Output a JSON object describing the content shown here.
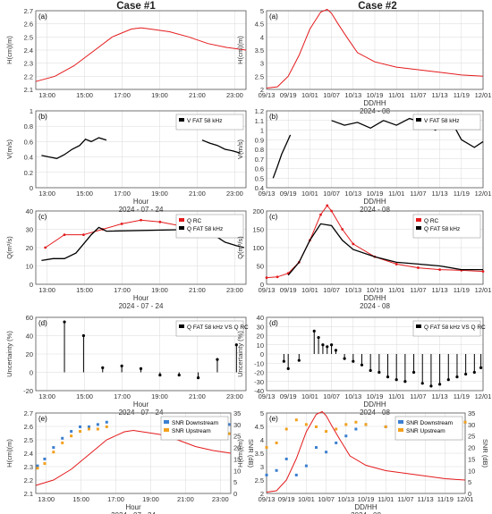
{
  "case_titles": [
    "Case #1",
    "Case #2"
  ],
  "colors": {
    "red": "#e41a1c",
    "black": "#000000",
    "blue": "#3b7fd0",
    "orange": "#f2a11d",
    "grid": "#d9d9d9",
    "axis": "#555555"
  },
  "chart_data": [
    {
      "type": "line",
      "panel": "(a)",
      "case": "Case #1",
      "ylabel": "H(cm)(m)",
      "xlabel": "",
      "x_ticks": [
        "13:00",
        "15:00",
        "17:00",
        "19:00",
        "21:00",
        "23:00"
      ],
      "xlim": [
        12.5,
        23.5
      ],
      "ylim": [
        2.1,
        2.7
      ],
      "y_ticks": [
        2.1,
        2.2,
        2.3,
        2.4,
        2.5,
        2.6,
        2.7
      ],
      "series": [
        {
          "color": "red",
          "x": [
            12.5,
            13.5,
            14.5,
            15.5,
            16.5,
            17.5,
            18.0,
            18.5,
            19.5,
            20.5,
            21.5,
            22.5,
            23.5
          ],
          "y": [
            2.16,
            2.2,
            2.28,
            2.39,
            2.5,
            2.56,
            2.57,
            2.56,
            2.54,
            2.5,
            2.45,
            2.42,
            2.4
          ]
        }
      ]
    },
    {
      "type": "line",
      "panel": "(a)",
      "case": "Case #2",
      "ylabel": "H(cm)(m)",
      "xlabel": "DD/HH",
      "xlabel2": "2024 - 08",
      "x_ticks": [
        "09/13",
        "09/19",
        "10/01",
        "10/07",
        "10/13",
        "10/19",
        "11/01",
        "11/07",
        "11/13",
        "11/19",
        "12/01"
      ],
      "xlim": [
        0,
        10
      ],
      "ylim": [
        2,
        5
      ],
      "y_ticks": [
        2,
        2.5,
        3,
        3.5,
        4,
        4.5,
        5
      ],
      "series": [
        {
          "color": "red",
          "x": [
            0,
            0.5,
            1.0,
            1.5,
            2.0,
            2.5,
            2.8,
            3.0,
            3.3,
            3.7,
            4.2,
            5.0,
            6.0,
            7.0,
            8.0,
            9.0,
            10.0
          ],
          "y": [
            2.05,
            2.1,
            2.5,
            3.3,
            4.3,
            4.95,
            5.05,
            4.9,
            4.5,
            4.0,
            3.4,
            3.05,
            2.85,
            2.75,
            2.65,
            2.55,
            2.5
          ]
        }
      ]
    },
    {
      "type": "line",
      "panel": "(b)",
      "case": "Case #1",
      "ylabel": "V(m/s)",
      "xlabel": "Hour",
      "xlabel2": "2024 - 07 - 24",
      "x_ticks": [
        "13:00",
        "15:00",
        "17:00",
        "19:00",
        "21:00",
        "23:00"
      ],
      "xlim": [
        12.5,
        23.5
      ],
      "ylim": [
        0.0,
        1.0
      ],
      "y_ticks": [
        0.0,
        0.2,
        0.4,
        0.6,
        0.8,
        1.0
      ],
      "legend": "V FAT 58 kHz",
      "series": [
        {
          "color": "black",
          "x": [
            12.8,
            13.2,
            13.6,
            14.0,
            14.4,
            14.8,
            15.1,
            15.4,
            15.8,
            16.2
          ],
          "y": [
            0.42,
            0.4,
            0.38,
            0.43,
            0.5,
            0.55,
            0.63,
            0.6,
            0.65,
            0.62
          ]
        },
        {
          "color": "black",
          "x": [
            21.2,
            21.6,
            22.0,
            22.4,
            22.8,
            23.2
          ],
          "y": [
            0.62,
            0.58,
            0.55,
            0.5,
            0.48,
            0.45
          ]
        }
      ]
    },
    {
      "type": "line",
      "panel": "(b)",
      "case": "Case #2",
      "ylabel": "V(m/s)",
      "xlabel": "DD/HH",
      "xlabel2": "2024 - 08",
      "x_ticks": [
        "09/13",
        "09/19",
        "10/01",
        "10/07",
        "10/13",
        "10/19",
        "11/01",
        "11/07",
        "11/13",
        "11/19",
        "12/01"
      ],
      "xlim": [
        0,
        10
      ],
      "ylim": [
        0.4,
        1.2
      ],
      "y_ticks": [
        0.4,
        0.5,
        0.6,
        0.7,
        0.8,
        0.9,
        1.0,
        1.1,
        1.2
      ],
      "legend": "V FAT 58 kHz",
      "series": [
        {
          "color": "black",
          "x": [
            0.3,
            0.5,
            0.7,
            0.9,
            1.1
          ],
          "y": [
            0.5,
            0.62,
            0.75,
            0.85,
            0.95
          ]
        },
        {
          "color": "black",
          "x": [
            3.0,
            3.6,
            4.2,
            4.8,
            5.4,
            6.0,
            6.6,
            7.2,
            7.8,
            8.4,
            9.0,
            9.6,
            10.0
          ],
          "y": [
            1.1,
            1.05,
            1.08,
            1.02,
            1.1,
            1.05,
            1.12,
            1.08,
            1.0,
            1.15,
            0.9,
            0.82,
            0.88
          ]
        }
      ]
    },
    {
      "type": "scatter",
      "panel": "(c)",
      "case": "Case #1",
      "ylabel": "Q(m³/s)",
      "xlabel": "Hour",
      "xlabel2": "2024 - 07 - 24",
      "x_ticks": [
        "13:00",
        "15:00",
        "17:00",
        "19:00",
        "21:00",
        "23:00"
      ],
      "xlim": [
        12.5,
        23.5
      ],
      "ylim": [
        0,
        40
      ],
      "y_ticks": [
        0,
        10,
        20,
        30,
        40
      ],
      "legend": [
        "Q RC",
        "Q FAT 58 kHz"
      ],
      "series": [
        {
          "name": "Q RC",
          "color": "red",
          "x": [
            13,
            14,
            15,
            16,
            17,
            18,
            19,
            20,
            21,
            22,
            23
          ],
          "y": [
            20,
            27,
            27,
            30,
            33,
            35,
            34,
            32,
            30,
            28,
            27
          ]
        },
        {
          "name": "Q FAT 58 kHz",
          "color": "black",
          "x": [
            12.8,
            13.4,
            14.0,
            14.6,
            15.0,
            15.4,
            15.8,
            16.2,
            21.2,
            21.8,
            22.4,
            23.0,
            23.4
          ],
          "y": [
            13,
            14,
            14,
            17,
            22,
            27,
            31,
            29,
            30,
            27,
            23,
            21,
            20
          ]
        }
      ]
    },
    {
      "type": "scatter",
      "panel": "(c)",
      "case": "Case #2",
      "ylabel": "Q(m³/s)",
      "xlabel": "DD/HH",
      "xlabel2": "2024 - 08",
      "x_ticks": [
        "09/13",
        "09/19",
        "10/01",
        "10/07",
        "10/13",
        "10/19",
        "11/01",
        "11/07",
        "11/13",
        "11/19",
        "12/01"
      ],
      "xlim": [
        0,
        10
      ],
      "ylim": [
        0,
        200
      ],
      "y_ticks": [
        0,
        50,
        100,
        150,
        200
      ],
      "legend": [
        "Q RC",
        "Q FAT 58 kHz"
      ],
      "series": [
        {
          "name": "Q RC",
          "color": "red",
          "x": [
            0,
            0.5,
            1.0,
            1.5,
            2.0,
            2.5,
            2.8,
            3.0,
            3.5,
            4.0,
            5.0,
            6.0,
            7.0,
            8.0,
            9.0,
            10.0
          ],
          "y": [
            18,
            20,
            30,
            60,
            120,
            190,
            215,
            200,
            150,
            110,
            75,
            55,
            45,
            40,
            38,
            35
          ]
        },
        {
          "name": "Q FAT 58 kHz",
          "color": "black",
          "x": [
            1.0,
            1.5,
            2.0,
            2.5,
            3.0,
            3.5,
            4.0,
            5.0,
            6.0,
            7.0,
            8.0,
            9.0,
            10.0
          ],
          "y": [
            25,
            60,
            120,
            165,
            160,
            120,
            95,
            75,
            60,
            55,
            50,
            40,
            40
          ]
        }
      ]
    },
    {
      "type": "bar",
      "panel": "(d)",
      "case": "Case #1",
      "ylabel": "Uncertainty (%)",
      "xlabel": "Hour",
      "xlabel2": "2024 - 07 - 24",
      "x_ticks": [
        "13:00",
        "15:00",
        "17:00",
        "19:00",
        "21:00",
        "23:00"
      ],
      "xlim": [
        12.5,
        23.5
      ],
      "ylim": [
        -20,
        60
      ],
      "y_ticks": [
        -20,
        0,
        20,
        40,
        60
      ],
      "legend": "Q FAT 58 kHz VS Q RC",
      "x": [
        14,
        15,
        16,
        17,
        18,
        19,
        20,
        21,
        22,
        23
      ],
      "values": [
        55,
        40,
        5,
        7,
        4,
        -3,
        -3,
        -6,
        14,
        30
      ]
    },
    {
      "type": "bar",
      "panel": "(d)",
      "case": "Case #2",
      "ylabel": "Uncertainty (%)",
      "xlabel": "DD/HH",
      "xlabel2": "2024 - 08",
      "x_ticks": [
        "09/13",
        "09/19",
        "10/01",
        "10/07",
        "10/13",
        "10/19",
        "11/01",
        "11/07",
        "11/13",
        "11/19",
        "12/01"
      ],
      "xlim": [
        0,
        10
      ],
      "ylim": [
        -40,
        40
      ],
      "y_ticks": [
        -40,
        -30,
        -20,
        -10,
        0,
        10,
        20,
        30,
        40
      ],
      "legend": "Q FAT 58 kHz VS Q RC",
      "x": [
        0.8,
        1.0,
        1.5,
        2.2,
        2.4,
        2.6,
        2.8,
        3.0,
        3.2,
        3.6,
        4.0,
        4.4,
        4.8,
        5.2,
        5.6,
        6.0,
        6.4,
        6.8,
        7.2,
        7.6,
        8.0,
        8.4,
        8.8,
        9.2,
        9.6,
        9.9
      ],
      "values": [
        -8,
        -16,
        -7,
        25,
        18,
        10,
        8,
        10,
        4,
        -5,
        -8,
        -12,
        -18,
        -20,
        -25,
        -28,
        -30,
        -20,
        -32,
        -35,
        -33,
        -28,
        -25,
        -22,
        -20,
        -15
      ]
    },
    {
      "type": "scatter",
      "panel": "(e)",
      "case": "Case #1",
      "ylabel": "H(cm)(m)",
      "ylabel_right": "SNR (dB)",
      "xlabel": "Hour",
      "xlabel2": "2024 - 07 - 24",
      "x_ticks": [
        "13:00",
        "15:00",
        "17:00",
        "19:00",
        "21:00",
        "23:00"
      ],
      "xlim": [
        12.5,
        23.5
      ],
      "ylim": [
        2.1,
        2.7
      ],
      "y_ticks": [
        2.1,
        2.2,
        2.3,
        2.4,
        2.5,
        2.6,
        2.7
      ],
      "ylim_right": [
        0,
        35
      ],
      "y_ticks_right": [
        0,
        5,
        10,
        15,
        20,
        25,
        30,
        35
      ],
      "legend": [
        "SNR Downstream",
        "SNR Upstream"
      ],
      "series": [
        {
          "name": "SNR Downstream",
          "color": "blue",
          "x": [
            12.6,
            13.0,
            13.5,
            14.0,
            14.5,
            15.0,
            15.5,
            16.0,
            16.5,
            21.5,
            22.0,
            22.5,
            23.0,
            23.4
          ],
          "y": [
            12,
            15,
            20,
            24,
            27,
            29,
            29,
            30,
            31,
            30,
            31,
            30,
            31,
            30
          ]
        },
        {
          "name": "SNR Upstream",
          "color": "orange",
          "x": [
            12.6,
            13.0,
            13.5,
            14.0,
            14.5,
            15.0,
            15.5,
            16.0,
            16.5,
            21.5,
            22.0,
            22.5,
            23.0,
            23.4
          ],
          "y": [
            11,
            13,
            18,
            22,
            25,
            27,
            28,
            28,
            29,
            27,
            27,
            26,
            27,
            26
          ]
        },
        {
          "name": "H(cm)",
          "color": "red",
          "x": [
            12.5,
            13.5,
            14.5,
            15.5,
            16.5,
            17.5,
            18.0,
            18.5,
            19.5,
            20.5,
            21.5,
            22.5,
            23.5
          ],
          "y": [
            2.16,
            2.2,
            2.28,
            2.39,
            2.5,
            2.56,
            2.57,
            2.56,
            2.54,
            2.5,
            2.45,
            2.42,
            2.4
          ]
        }
      ]
    },
    {
      "type": "scatter",
      "panel": "(e)",
      "case": "Case #2",
      "ylabel": "H(cm)(m)",
      "ylabel_right": "SNR (dB)",
      "xlabel": "DD/HH",
      "xlabel2": "2024 - 08",
      "x_ticks": [
        "09/13",
        "09/19",
        "10/01",
        "10/07",
        "10/13",
        "10/19",
        "11/01",
        "11/07",
        "11/13",
        "11/19",
        "12/01"
      ],
      "xlim": [
        0,
        10
      ],
      "ylim": [
        2,
        5
      ],
      "y_ticks": [
        2.0,
        2.5,
        3.0,
        3.5,
        4.0,
        4.5,
        5.0
      ],
      "ylim_right": [
        0,
        35
      ],
      "y_ticks_right": [
        0,
        5,
        10,
        15,
        20,
        25,
        30,
        35
      ],
      "legend": [
        "SNR Downstream",
        "SNR Upstream"
      ],
      "series": [
        {
          "name": "SNR Downstream",
          "color": "blue",
          "x": [
            0,
            0.5,
            1.0,
            1.5,
            2.0,
            2.5,
            3.0,
            3.5,
            4.0,
            4.5,
            5.0,
            6.0,
            7.0,
            8.0,
            9.0,
            10.0
          ],
          "y": [
            8,
            10,
            15,
            8,
            12,
            20,
            18,
            22,
            25,
            28,
            30,
            29,
            28,
            30,
            30,
            31
          ]
        },
        {
          "name": "SNR Upstream",
          "color": "orange",
          "x": [
            0,
            0.5,
            1.0,
            1.5,
            2.0,
            2.5,
            3.0,
            3.5,
            4.0,
            4.5,
            5.0,
            6.0,
            7.0,
            8.0,
            9.0,
            10.0
          ],
          "y": [
            20,
            22,
            28,
            32,
            30,
            29,
            27,
            28,
            30,
            31,
            30,
            29,
            30,
            31,
            32,
            31
          ]
        },
        {
          "name": "H(cm)",
          "color": "red",
          "x": [
            0,
            0.5,
            1.0,
            1.5,
            2.0,
            2.5,
            2.8,
            3.0,
            3.3,
            3.7,
            4.2,
            5.0,
            6.0,
            7.0,
            8.0,
            9.0,
            10.0
          ],
          "y": [
            2.05,
            2.1,
            2.5,
            3.3,
            4.3,
            4.95,
            5.05,
            4.9,
            4.5,
            4.0,
            3.4,
            3.05,
            2.85,
            2.75,
            2.65,
            2.55,
            2.5
          ]
        }
      ]
    }
  ]
}
